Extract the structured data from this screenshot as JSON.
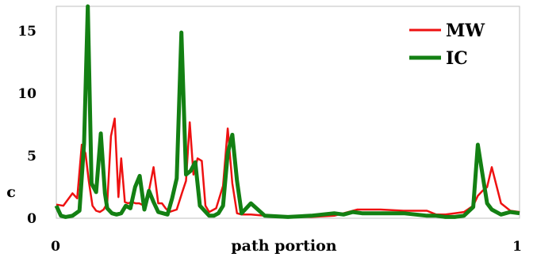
{
  "chart_data": {
    "type": "line",
    "xlabel": "path portion",
    "ylabel": "c",
    "xlim": [
      0,
      1
    ],
    "ylim": [
      0,
      17
    ],
    "x_ticks": [
      "0",
      "1"
    ],
    "y_ticks": [
      0,
      5,
      10,
      15
    ],
    "grid": false,
    "legend_position": "top-right",
    "series": [
      {
        "name": "MW",
        "color": "#ee1111",
        "x": [
          0,
          0.015,
          0.035,
          0.045,
          0.055,
          0.063,
          0.07,
          0.078,
          0.086,
          0.094,
          0.102,
          0.11,
          0.118,
          0.126,
          0.134,
          0.14,
          0.148,
          0.155,
          0.163,
          0.171,
          0.179,
          0.19,
          0.2,
          0.21,
          0.22,
          0.228,
          0.236,
          0.244,
          0.26,
          0.272,
          0.28,
          0.288,
          0.296,
          0.305,
          0.314,
          0.322,
          0.33,
          0.345,
          0.36,
          0.37,
          0.38,
          0.39,
          0.4,
          0.42,
          0.45,
          0.5,
          0.55,
          0.6,
          0.62,
          0.65,
          0.7,
          0.75,
          0.8,
          0.82,
          0.84,
          0.86,
          0.88,
          0.9,
          0.91,
          0.92,
          0.93,
          0.94,
          0.96,
          0.98,
          1.0
        ],
        "values": [
          1.1,
          1.0,
          2.0,
          1.6,
          5.9,
          5.2,
          3.0,
          1.0,
          0.6,
          0.5,
          0.7,
          1.2,
          6.6,
          8.0,
          1.7,
          4.8,
          1.3,
          1.2,
          1.3,
          1.2,
          1.2,
          1.0,
          2.2,
          4.1,
          1.2,
          1.2,
          0.8,
          0.5,
          0.7,
          2.1,
          3.0,
          7.7,
          3.5,
          4.8,
          4.6,
          1.0,
          0.5,
          0.8,
          2.6,
          7.2,
          2.8,
          0.4,
          0.3,
          0.3,
          0.2,
          0.1,
          0.1,
          0.2,
          0.4,
          0.7,
          0.7,
          0.6,
          0.6,
          0.3,
          0.3,
          0.4,
          0.5,
          1.0,
          1.8,
          2.2,
          2.5,
          4.1,
          1.2,
          0.6,
          0.5
        ]
      },
      {
        "name": "IC",
        "color": "#138013",
        "x": [
          0,
          0.01,
          0.02,
          0.035,
          0.05,
          0.06,
          0.068,
          0.076,
          0.086,
          0.096,
          0.105,
          0.11,
          0.12,
          0.13,
          0.14,
          0.15,
          0.16,
          0.17,
          0.18,
          0.19,
          0.2,
          0.21,
          0.22,
          0.23,
          0.24,
          0.25,
          0.26,
          0.27,
          0.28,
          0.29,
          0.3,
          0.31,
          0.32,
          0.33,
          0.34,
          0.35,
          0.36,
          0.37,
          0.38,
          0.39,
          0.4,
          0.42,
          0.45,
          0.5,
          0.55,
          0.6,
          0.62,
          0.64,
          0.66,
          0.68,
          0.7,
          0.75,
          0.8,
          0.82,
          0.84,
          0.86,
          0.88,
          0.9,
          0.91,
          0.92,
          0.93,
          0.94,
          0.96,
          0.98,
          1.0
        ],
        "values": [
          1.0,
          0.2,
          0.1,
          0.2,
          0.6,
          6.0,
          17.0,
          2.8,
          2.1,
          6.8,
          2.0,
          0.8,
          0.4,
          0.3,
          0.4,
          1.0,
          0.8,
          2.5,
          3.4,
          0.7,
          2.2,
          1.3,
          0.5,
          0.4,
          0.3,
          1.6,
          3.2,
          14.9,
          3.5,
          3.8,
          4.5,
          1.0,
          0.6,
          0.2,
          0.2,
          0.4,
          1.0,
          5.2,
          6.7,
          3.0,
          0.4,
          1.2,
          0.2,
          0.1,
          0.2,
          0.4,
          0.3,
          0.5,
          0.4,
          0.4,
          0.4,
          0.4,
          0.2,
          0.2,
          0.1,
          0.1,
          0.2,
          0.9,
          5.9,
          3.5,
          1.2,
          0.7,
          0.3,
          0.5,
          0.4
        ]
      }
    ]
  }
}
